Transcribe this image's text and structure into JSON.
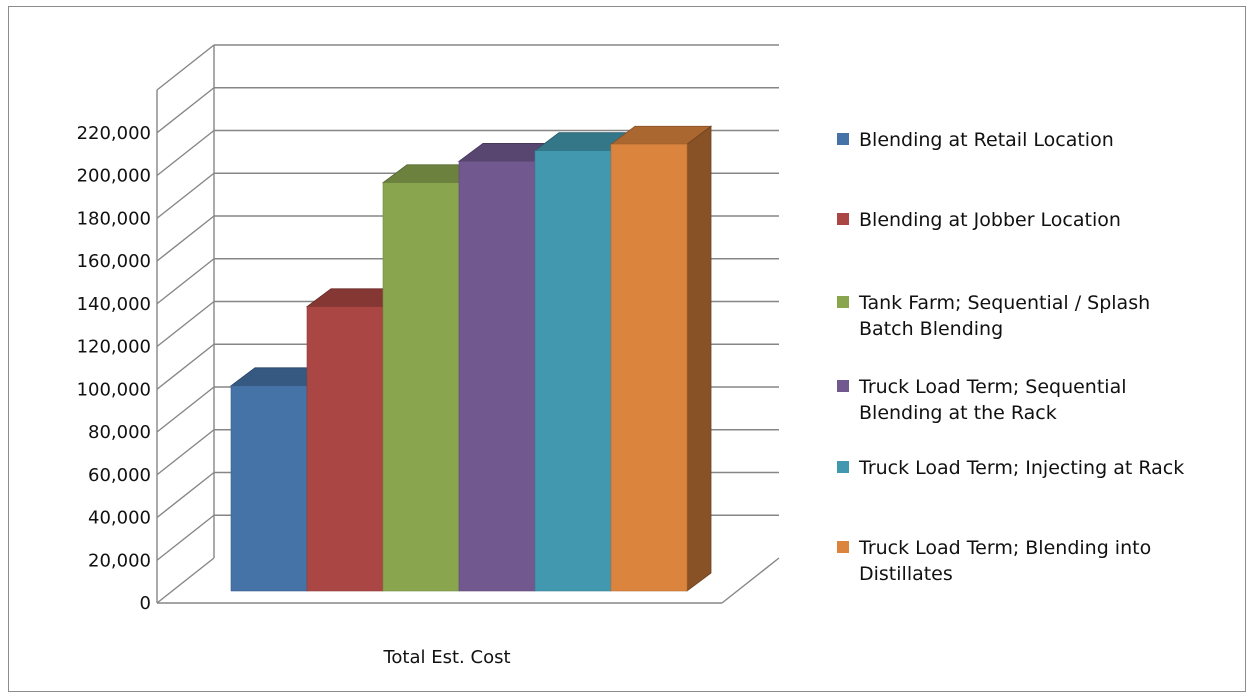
{
  "chart_data": {
    "type": "bar",
    "three_d": true,
    "categories": [
      "Total Est. Cost"
    ],
    "series": [
      {
        "name": "Blending at Retail Location",
        "legend_lines": [
          "Blending at Retail Location"
        ],
        "values": [
          96000
        ],
        "color": "#4572a7"
      },
      {
        "name": "Blending at Jobber Location",
        "legend_lines": [
          "Blending at Jobber Location"
        ],
        "values": [
          133000
        ],
        "color": "#aa4643"
      },
      {
        "name": "Tank Farm; Sequential / Splash Batch Blending",
        "legend_lines": [
          "Tank Farm; Sequential / Splash",
          "Batch Blending"
        ],
        "values": [
          191000
        ],
        "color": "#89a54e"
      },
      {
        "name": "Truck Load Term; Sequential Blending at the Rack",
        "legend_lines": [
          "Truck Load Term; Sequential",
          "Blending at the Rack"
        ],
        "values": [
          201000
        ],
        "color": "#71588f"
      },
      {
        "name": "Truck Load Term; Injecting at Rack",
        "legend_lines": [
          "Truck Load Term; Injecting at Rack"
        ],
        "values": [
          206000
        ],
        "color": "#4198af"
      },
      {
        "name": "Truck Load Term; Blending into Distillates",
        "legend_lines": [
          "Truck Load Term; Blending into",
          "Distillates"
        ],
        "values": [
          209000
        ],
        "color": "#db843d"
      }
    ],
    "y_ticks": [
      "0",
      "20,000",
      "40,000",
      "60,000",
      "80,000",
      "100,000",
      "120,000",
      "140,000",
      "160,000",
      "180,000",
      "200,000",
      "220,000"
    ],
    "ylim": [
      0,
      240000
    ],
    "grid": true,
    "legend_position": "right"
  }
}
